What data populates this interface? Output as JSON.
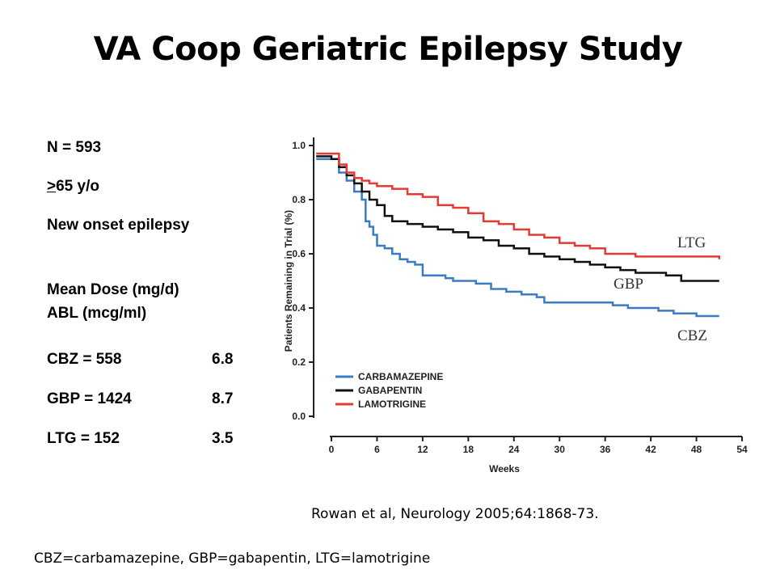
{
  "slide": {
    "title": "VA Coop Geriatric Epilepsy Study",
    "n": "N = 593",
    "age_prefix": ">",
    "age_rest": "65 y/o",
    "onset": "New onset epilepsy",
    "dose_header_1": "Mean Dose (mg/d)",
    "dose_header_2": "ABL (mcg/ml)",
    "doses": [
      {
        "label": "CBZ = 558",
        "abl": "6.8"
      },
      {
        "label": "GBP = 1424",
        "abl": "8.7"
      },
      {
        "label": "LTG = 152",
        "abl": "3.5"
      }
    ],
    "citation": "Rowan et al, Neurology 2005;64:1868-73.",
    "footnote": "CBZ=carbamazepine, GBP=gabapentin, LTG=lamotrigine"
  },
  "chart_data": {
    "type": "line",
    "ylabel": "Patients Remaining in Trial (%)",
    "xlabel": "Weeks",
    "xlim": [
      0,
      54
    ],
    "ylim": [
      0,
      1.0
    ],
    "xticks": [
      0,
      6,
      12,
      18,
      24,
      30,
      36,
      42,
      48,
      54
    ],
    "yticks": [
      "0.0",
      "0.2",
      "0.4",
      "0.6",
      "0.8",
      "1.0"
    ],
    "legend_position": "bottom-left",
    "series": [
      {
        "name": "CARBAMAZEPINE",
        "color": "#3a7cc4",
        "annotation": "CBZ",
        "points": [
          [
            -2,
            0.95
          ],
          [
            0,
            0.95
          ],
          [
            1,
            0.9
          ],
          [
            2,
            0.87
          ],
          [
            3,
            0.83
          ],
          [
            4,
            0.8
          ],
          [
            4.5,
            0.72
          ],
          [
            5,
            0.7
          ],
          [
            5.5,
            0.67
          ],
          [
            6,
            0.63
          ],
          [
            7,
            0.62
          ],
          [
            8,
            0.6
          ],
          [
            9,
            0.58
          ],
          [
            10,
            0.57
          ],
          [
            11,
            0.56
          ],
          [
            12,
            0.52
          ],
          [
            15,
            0.51
          ],
          [
            16,
            0.5
          ],
          [
            19,
            0.49
          ],
          [
            21,
            0.47
          ],
          [
            23,
            0.46
          ],
          [
            25,
            0.45
          ],
          [
            27,
            0.44
          ],
          [
            28,
            0.42
          ],
          [
            31,
            0.42
          ],
          [
            34,
            0.42
          ],
          [
            37,
            0.41
          ],
          [
            39,
            0.4
          ],
          [
            43,
            0.39
          ],
          [
            45,
            0.38
          ],
          [
            48,
            0.37
          ],
          [
            51,
            0.37
          ]
        ]
      },
      {
        "name": "GABAPENTIN",
        "color": "#111111",
        "annotation": "GBP",
        "points": [
          [
            -2,
            0.96
          ],
          [
            0,
            0.95
          ],
          [
            1,
            0.92
          ],
          [
            2,
            0.89
          ],
          [
            3,
            0.86
          ],
          [
            4,
            0.83
          ],
          [
            5,
            0.8
          ],
          [
            6,
            0.78
          ],
          [
            7,
            0.74
          ],
          [
            8,
            0.72
          ],
          [
            10,
            0.71
          ],
          [
            12,
            0.7
          ],
          [
            14,
            0.69
          ],
          [
            16,
            0.68
          ],
          [
            18,
            0.66
          ],
          [
            20,
            0.65
          ],
          [
            22,
            0.63
          ],
          [
            24,
            0.62
          ],
          [
            26,
            0.6
          ],
          [
            28,
            0.59
          ],
          [
            30,
            0.58
          ],
          [
            32,
            0.57
          ],
          [
            34,
            0.56
          ],
          [
            36,
            0.55
          ],
          [
            38,
            0.54
          ],
          [
            40,
            0.53
          ],
          [
            42,
            0.53
          ],
          [
            44,
            0.52
          ],
          [
            46,
            0.5
          ],
          [
            51,
            0.5
          ]
        ]
      },
      {
        "name": "LAMOTRIGINE",
        "color": "#e53b34",
        "annotation": "LTG",
        "points": [
          [
            -2,
            0.97
          ],
          [
            0,
            0.97
          ],
          [
            1,
            0.93
          ],
          [
            2,
            0.9
          ],
          [
            3,
            0.88
          ],
          [
            4,
            0.87
          ],
          [
            5,
            0.86
          ],
          [
            6,
            0.85
          ],
          [
            8,
            0.84
          ],
          [
            10,
            0.82
          ],
          [
            12,
            0.81
          ],
          [
            14,
            0.78
          ],
          [
            16,
            0.77
          ],
          [
            18,
            0.75
          ],
          [
            20,
            0.72
          ],
          [
            22,
            0.71
          ],
          [
            24,
            0.69
          ],
          [
            26,
            0.67
          ],
          [
            28,
            0.66
          ],
          [
            30,
            0.64
          ],
          [
            32,
            0.63
          ],
          [
            34,
            0.62
          ],
          [
            36,
            0.6
          ],
          [
            38,
            0.6
          ],
          [
            40,
            0.59
          ],
          [
            42,
            0.59
          ],
          [
            44,
            0.59
          ],
          [
            46,
            0.59
          ],
          [
            51,
            0.58
          ]
        ]
      }
    ]
  }
}
